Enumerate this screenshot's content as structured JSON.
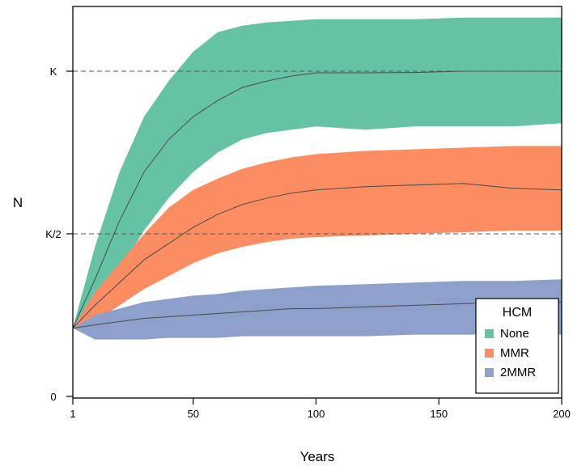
{
  "chart_data": {
    "type": "area",
    "xlabel": "Years",
    "ylabel": "N",
    "xlim": [
      1,
      200
    ],
    "ylim": [
      0,
      1.08
    ],
    "x_ticks": [
      {
        "value": 1,
        "label": "1"
      },
      {
        "value": 50,
        "label": "50"
      },
      {
        "value": 100,
        "label": "100"
      },
      {
        "value": 150,
        "label": "150"
      },
      {
        "value": 200,
        "label": "200"
      }
    ],
    "y_ticks": [
      {
        "value": 0,
        "label": "0"
      },
      {
        "value": 0.5,
        "label": "K/2"
      },
      {
        "value": 1.0,
        "label": "K"
      }
    ],
    "reference_lines": [
      {
        "y": 1.0,
        "style": "dashed",
        "label": "K"
      },
      {
        "y": 0.5,
        "style": "dashed",
        "label": "K/2"
      }
    ],
    "legend": {
      "title": "HCM",
      "position": "bottom-right"
    },
    "x": [
      1,
      10,
      20,
      30,
      40,
      50,
      60,
      70,
      80,
      90,
      100,
      120,
      140,
      160,
      180,
      200
    ],
    "series": [
      {
        "name": "None",
        "color": "#66c2a5",
        "mean": [
          0.21,
          0.36,
          0.54,
          0.69,
          0.79,
          0.86,
          0.91,
          0.95,
          0.97,
          0.985,
          0.995,
          0.995,
          0.996,
          1.0,
          1.0,
          1.0
        ],
        "lower": [
          0.21,
          0.27,
          0.39,
          0.51,
          0.61,
          0.69,
          0.75,
          0.79,
          0.81,
          0.82,
          0.83,
          0.82,
          0.83,
          0.83,
          0.83,
          0.84
        ],
        "upper": [
          0.21,
          0.46,
          0.69,
          0.86,
          0.97,
          1.06,
          1.12,
          1.14,
          1.15,
          1.155,
          1.16,
          1.16,
          1.16,
          1.165,
          1.165,
          1.165
        ]
      },
      {
        "name": "MMR",
        "color": "#fc8d62",
        "mean": [
          0.21,
          0.28,
          0.35,
          0.42,
          0.47,
          0.52,
          0.56,
          0.59,
          0.61,
          0.625,
          0.635,
          0.645,
          0.65,
          0.655,
          0.64,
          0.635
        ],
        "lower": [
          0.21,
          0.23,
          0.28,
          0.33,
          0.37,
          0.41,
          0.44,
          0.46,
          0.475,
          0.485,
          0.49,
          0.495,
          0.5,
          0.505,
          0.51,
          0.51
        ],
        "upper": [
          0.21,
          0.32,
          0.41,
          0.5,
          0.58,
          0.635,
          0.67,
          0.7,
          0.72,
          0.735,
          0.745,
          0.755,
          0.76,
          0.765,
          0.77,
          0.77
        ]
      },
      {
        "name": "2MMR",
        "color": "#8da0cb",
        "mean": [
          0.21,
          0.22,
          0.23,
          0.24,
          0.245,
          0.25,
          0.255,
          0.26,
          0.265,
          0.27,
          0.27,
          0.275,
          0.28,
          0.285,
          0.29,
          0.29
        ],
        "lower": [
          0.21,
          0.175,
          0.175,
          0.175,
          0.18,
          0.18,
          0.18,
          0.185,
          0.185,
          0.185,
          0.185,
          0.185,
          0.19,
          0.19,
          0.19,
          0.19
        ],
        "upper": [
          0.21,
          0.25,
          0.27,
          0.29,
          0.3,
          0.31,
          0.315,
          0.325,
          0.33,
          0.335,
          0.34,
          0.345,
          0.35,
          0.355,
          0.355,
          0.36
        ]
      }
    ]
  }
}
